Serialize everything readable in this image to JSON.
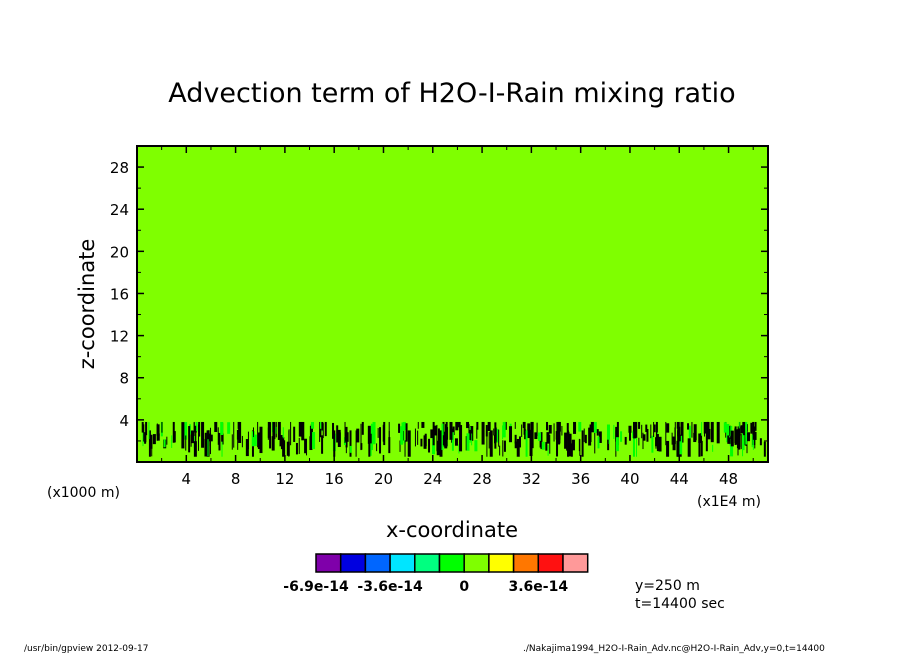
{
  "chart_data": {
    "type": "heatmap",
    "title": "Advection term of H2O-I-Rain mixing ratio",
    "xlabel": "x-coordinate",
    "ylabel": "z-coordinate",
    "x_unit_left": "(x1000 m)",
    "x_unit_right": "(x1E4 m)",
    "xlim": [
      0,
      51.2
    ],
    "ylim": [
      0,
      30
    ],
    "xticks": [
      4,
      8,
      12,
      16,
      20,
      24,
      28,
      32,
      36,
      40,
      44,
      48
    ],
    "yticks": [
      4,
      8,
      12,
      16,
      20,
      24,
      28
    ],
    "background_value_color": "#7fff00",
    "feature_band_z": [
      0.5,
      3.8
    ],
    "colorbar": {
      "colors": [
        "#7f00aa",
        "#0000e0",
        "#0066ff",
        "#00e5ff",
        "#00ff80",
        "#00ff00",
        "#7fff00",
        "#ffff00",
        "#ff7700",
        "#ff1111",
        "#ff9999"
      ],
      "labels": [
        {
          "text": "-6.9e-14",
          "boundary": 0
        },
        {
          "text": "-3.6e-14",
          "boundary": 3
        },
        {
          "text": "0",
          "boundary": 6
        },
        {
          "text": "3.6e-14",
          "boundary": 9
        }
      ]
    },
    "annotations": [
      "y=250 m",
      "t=14400 sec"
    ]
  },
  "footer": {
    "left": "/usr/bin/gpview   2012-09-17",
    "right": "./Nakajima1994_H2O-I-Rain_Adv.nc@H2O-I-Rain_Adv,y=0,t=14400"
  }
}
